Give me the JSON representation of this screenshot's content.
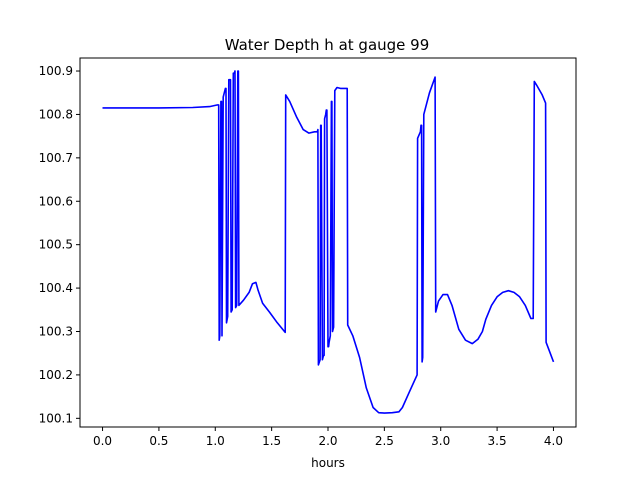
{
  "chart_data": {
    "type": "line",
    "title": "Water Depth h at gauge 99",
    "xlabel": "hours",
    "ylabel": "",
    "xlim": [
      -0.2,
      4.2
    ],
    "ylim": [
      100.08,
      100.93
    ],
    "xticks": [
      0.0,
      0.5,
      1.0,
      1.5,
      2.0,
      2.5,
      3.0,
      3.5,
      4.0
    ],
    "xtick_labels": [
      "0.0",
      "0.5",
      "1.0",
      "1.5",
      "2.0",
      "2.5",
      "3.0",
      "3.5",
      "4.0"
    ],
    "yticks": [
      100.1,
      100.2,
      100.3,
      100.4,
      100.5,
      100.6,
      100.7,
      100.8,
      100.9
    ],
    "ytick_labels": [
      "100.1",
      "100.2",
      "100.3",
      "100.4",
      "100.5",
      "100.6",
      "100.7",
      "100.8",
      "100.9"
    ],
    "grid": false,
    "color": "#0000ff",
    "series": [
      {
        "x": [
          0.0,
          0.5,
          0.8,
          0.95,
          1.02,
          1.03,
          1.035,
          1.04,
          1.05,
          1.055,
          1.06,
          1.07,
          1.08,
          1.09,
          1.095,
          1.1,
          1.11,
          1.12,
          1.13,
          1.135,
          1.14,
          1.15,
          1.16,
          1.17,
          1.175,
          1.18,
          1.19,
          1.2,
          1.205,
          1.21,
          1.25,
          1.3,
          1.33,
          1.36,
          1.38,
          1.42,
          1.48,
          1.55,
          1.62,
          1.625,
          1.66,
          1.72,
          1.78,
          1.83,
          1.88,
          1.905,
          1.91,
          1.915,
          1.93,
          1.935,
          1.94,
          1.95,
          1.96,
          1.965,
          1.97,
          1.98,
          1.985,
          1.99,
          2.0,
          2.005,
          2.01,
          2.02,
          2.03,
          2.035,
          2.04,
          2.05,
          2.06,
          2.08,
          2.11,
          2.15,
          2.17,
          2.175,
          2.22,
          2.28,
          2.34,
          2.4,
          2.45,
          2.5,
          2.57,
          2.63,
          2.66,
          2.72,
          2.79,
          2.795,
          2.82,
          2.825,
          2.83,
          2.835,
          2.84,
          2.85,
          2.9,
          2.95,
          2.955,
          2.98,
          3.02,
          3.06,
          3.1,
          3.16,
          3.22,
          3.28,
          3.33,
          3.37,
          3.4,
          3.45,
          3.5,
          3.55,
          3.6,
          3.65,
          3.7,
          3.75,
          3.8,
          3.82,
          3.83,
          3.85,
          3.9,
          3.93,
          3.935,
          3.96,
          4.0
        ],
        "y": [
          100.815,
          100.815,
          100.816,
          100.818,
          100.822,
          100.822,
          100.28,
          100.29,
          100.83,
          100.83,
          100.29,
          100.84,
          100.85,
          100.86,
          100.86,
          100.32,
          100.335,
          100.88,
          100.88,
          100.88,
          100.345,
          100.35,
          100.895,
          100.895,
          100.9,
          100.355,
          100.36,
          100.9,
          100.9,
          100.36,
          100.372,
          100.39,
          100.41,
          100.413,
          100.395,
          100.365,
          100.345,
          100.32,
          100.298,
          100.845,
          100.83,
          100.795,
          100.765,
          100.757,
          100.76,
          100.76,
          100.765,
          100.223,
          100.235,
          100.775,
          100.775,
          100.235,
          100.245,
          100.245,
          100.79,
          100.8,
          100.81,
          100.81,
          100.265,
          100.265,
          100.275,
          100.29,
          100.83,
          100.83,
          100.3,
          100.31,
          100.855,
          100.862,
          100.86,
          100.86,
          100.86,
          100.315,
          100.29,
          100.24,
          100.17,
          100.125,
          100.113,
          100.112,
          100.113,
          100.115,
          100.125,
          100.16,
          100.2,
          100.745,
          100.76,
          100.775,
          100.775,
          100.23,
          100.24,
          100.8,
          100.85,
          100.886,
          100.345,
          100.37,
          100.385,
          100.385,
          100.36,
          100.305,
          100.28,
          100.272,
          100.282,
          100.3,
          100.328,
          100.36,
          100.38,
          100.39,
          100.394,
          100.39,
          100.38,
          100.36,
          100.33,
          100.33,
          100.876,
          100.868,
          100.845,
          100.826,
          100.275,
          100.258,
          100.23
        ]
      }
    ]
  }
}
